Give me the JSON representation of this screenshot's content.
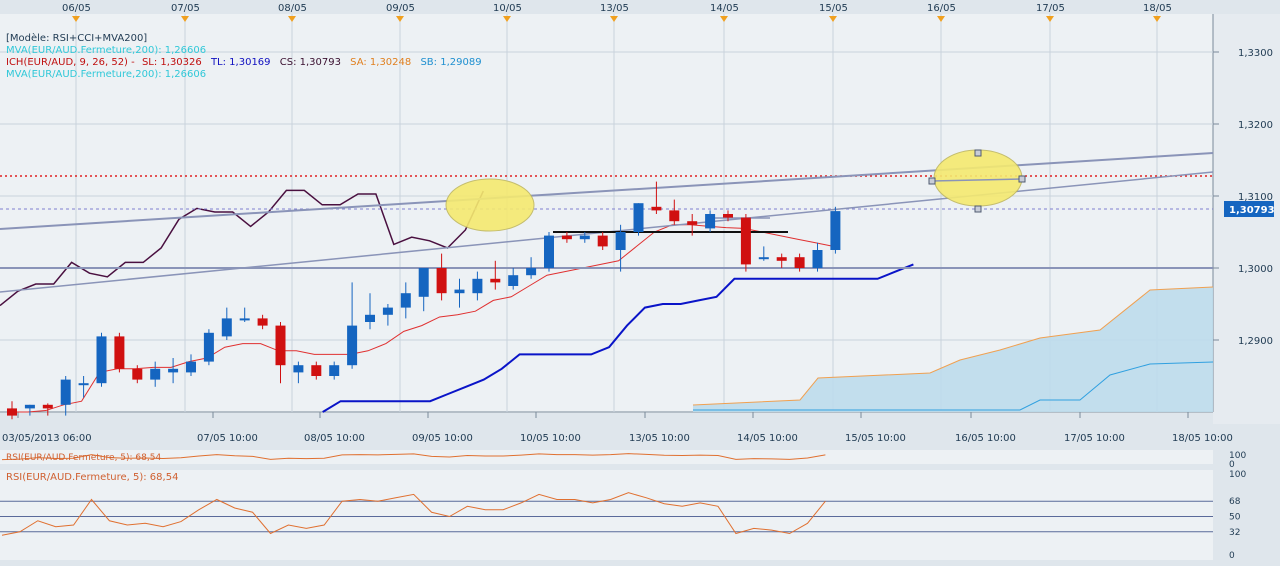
{
  "top_dates": [
    "06/05",
    "07/05",
    "08/05",
    "09/05",
    "10/05",
    "13/05",
    "14/05",
    "15/05",
    "16/05",
    "17/05",
    "18/05"
  ],
  "bottom_dates": [
    "03/05/2013 06:00",
    "07/05 10:00",
    "08/05 10:00",
    "09/05 10:00",
    "10/05 10:00",
    "13/05 10:00",
    "14/05 10:00",
    "15/05 10:00",
    "16/05 10:00",
    "17/05 10:00",
    "18/05 10:00"
  ],
  "legend": {
    "model": "[Modèle: RSI+CCI+MVA200]",
    "mva": "MVA(EUR/AUD.Fermeture,200): 1,26606",
    "ich_prefix": "ICH(EUR/AUD, 9, 26, 52) -",
    "ich_sl": "SL: 1,30326",
    "ich_tl": "TL: 1,30169",
    "ich_cs": "CS: 1,30793",
    "ich_sa": "SA: 1,30248",
    "ich_sb": "SB: 1,29089",
    "mva2": "MVA(EUR/AUD.Fermeture,200): 1,26606"
  },
  "price_axis": {
    "ticks": [
      "1,3300",
      "1,3200",
      "1,3100",
      "1,3000",
      "1,2900"
    ],
    "current": "1,30793"
  },
  "rsi_top": {
    "label": "RSI(EUR/AUD.Fermeture, 5): 68,54",
    "axis": [
      "100",
      "0"
    ]
  },
  "rsi_bottom": {
    "label": "RSI(EUR/AUD.Fermeture, 5): 68,54",
    "axis": [
      "100",
      "68",
      "50",
      "32",
      "0"
    ]
  },
  "colors": {
    "bull": "#1565c0",
    "bear": "#d01010",
    "tenkan": "#e03030",
    "kijun": "#0a14c8",
    "chikou": "#4a1040",
    "cloud_fill": "#bcdcec",
    "span_a": "#f0a050",
    "span_b": "#30a0e0",
    "trendline": "#8a94b8",
    "highlight": "#f5ea70",
    "rsi": "#e07030"
  },
  "chart_data": {
    "type": "candlestick",
    "instrument": "EUR/AUD",
    "y_ticks": [
      1.33,
      1.32,
      1.31,
      1.3,
      1.29
    ],
    "current_price": 1.30793,
    "resistance_level": 1.3013,
    "candles": [
      {
        "o": 1.2805,
        "h": 1.2815,
        "l": 1.279,
        "c": 1.2795
      },
      {
        "o": 1.2805,
        "h": 1.281,
        "l": 1.2795,
        "c": 1.281
      },
      {
        "o": 1.281,
        "h": 1.2812,
        "l": 1.2795,
        "c": 1.2805
      },
      {
        "o": 1.281,
        "h": 1.285,
        "l": 1.2795,
        "c": 1.2845
      },
      {
        "o": 1.284,
        "h": 1.285,
        "l": 1.282,
        "c": 1.284
      },
      {
        "o": 1.284,
        "h": 1.291,
        "l": 1.2835,
        "c": 1.2905
      },
      {
        "o": 1.2905,
        "h": 1.291,
        "l": 1.2855,
        "c": 1.286
      },
      {
        "o": 1.286,
        "h": 1.2865,
        "l": 1.284,
        "c": 1.2845
      },
      {
        "o": 1.2845,
        "h": 1.287,
        "l": 1.2835,
        "c": 1.286
      },
      {
        "o": 1.2855,
        "h": 1.2875,
        "l": 1.284,
        "c": 1.286
      },
      {
        "o": 1.2855,
        "h": 1.288,
        "l": 1.285,
        "c": 1.287
      },
      {
        "o": 1.287,
        "h": 1.2915,
        "l": 1.2865,
        "c": 1.291
      },
      {
        "o": 1.2905,
        "h": 1.2945,
        "l": 1.29,
        "c": 1.293
      },
      {
        "o": 1.293,
        "h": 1.2945,
        "l": 1.2925,
        "c": 1.293
      },
      {
        "o": 1.293,
        "h": 1.2935,
        "l": 1.2915,
        "c": 1.292
      },
      {
        "o": 1.292,
        "h": 1.2925,
        "l": 1.284,
        "c": 1.2865
      },
      {
        "o": 1.2855,
        "h": 1.287,
        "l": 1.284,
        "c": 1.2865
      },
      {
        "o": 1.2865,
        "h": 1.287,
        "l": 1.2845,
        "c": 1.285
      },
      {
        "o": 1.285,
        "h": 1.287,
        "l": 1.2845,
        "c": 1.2865
      },
      {
        "o": 1.2865,
        "h": 1.298,
        "l": 1.286,
        "c": 1.292
      },
      {
        "o": 1.2925,
        "h": 1.2965,
        "l": 1.2915,
        "c": 1.2935
      },
      {
        "o": 1.2935,
        "h": 1.295,
        "l": 1.292,
        "c": 1.2945
      },
      {
        "o": 1.2945,
        "h": 1.298,
        "l": 1.293,
        "c": 1.2965
      },
      {
        "o": 1.296,
        "h": 1.3,
        "l": 1.294,
        "c": 1.3
      },
      {
        "o": 1.3,
        "h": 1.302,
        "l": 1.2955,
        "c": 1.2965
      },
      {
        "o": 1.2965,
        "h": 1.2985,
        "l": 1.2945,
        "c": 1.297
      },
      {
        "o": 1.2965,
        "h": 1.2995,
        "l": 1.2955,
        "c": 1.2985
      },
      {
        "o": 1.2985,
        "h": 1.301,
        "l": 1.297,
        "c": 1.298
      },
      {
        "o": 1.2975,
        "h": 1.3,
        "l": 1.297,
        "c": 1.299
      },
      {
        "o": 1.299,
        "h": 1.3015,
        "l": 1.2985,
        "c": 1.3
      },
      {
        "o": 1.3,
        "h": 1.305,
        "l": 1.2995,
        "c": 1.3045
      },
      {
        "o": 1.3045,
        "h": 1.305,
        "l": 1.3035,
        "c": 1.304
      },
      {
        "o": 1.304,
        "h": 1.305,
        "l": 1.3035,
        "c": 1.3045
      },
      {
        "o": 1.3045,
        "h": 1.305,
        "l": 1.3025,
        "c": 1.303
      },
      {
        "o": 1.3025,
        "h": 1.306,
        "l": 1.2995,
        "c": 1.305
      },
      {
        "o": 1.305,
        "h": 1.309,
        "l": 1.3045,
        "c": 1.309
      },
      {
        "o": 1.3085,
        "h": 1.312,
        "l": 1.3075,
        "c": 1.308
      },
      {
        "o": 1.308,
        "h": 1.3095,
        "l": 1.306,
        "c": 1.3065
      },
      {
        "o": 1.3065,
        "h": 1.3075,
        "l": 1.3045,
        "c": 1.306
      },
      {
        "o": 1.3055,
        "h": 1.308,
        "l": 1.305,
        "c": 1.3075
      },
      {
        "o": 1.3075,
        "h": 1.308,
        "l": 1.3065,
        "c": 1.307
      },
      {
        "o": 1.307,
        "h": 1.3075,
        "l": 1.2995,
        "c": 1.3005
      },
      {
        "o": 1.3015,
        "h": 1.303,
        "l": 1.301,
        "c": 1.3015
      },
      {
        "o": 1.3015,
        "h": 1.302,
        "l": 1.3,
        "c": 1.301
      },
      {
        "o": 1.3015,
        "h": 1.302,
        "l": 1.2995,
        "c": 1.3
      },
      {
        "o": 1.3,
        "h": 1.3035,
        "l": 1.2995,
        "c": 1.3025
      },
      {
        "o": 1.3025,
        "h": 1.3085,
        "l": 1.302,
        "c": 1.3079
      }
    ],
    "tenkan": [
      1.28,
      1.28,
      1.2802,
      1.281,
      1.2815,
      1.2855,
      1.286,
      1.286,
      1.2862,
      1.2862,
      1.287,
      1.2875,
      1.289,
      1.2895,
      1.2895,
      1.2885,
      1.2885,
      1.288,
      1.288,
      1.288,
      1.2885,
      1.2895,
      1.2912,
      1.292,
      1.2932,
      1.2935,
      1.294,
      1.2955,
      1.296,
      1.2975,
      1.299,
      1.2995,
      1.3,
      1.3005,
      1.301,
      1.303,
      1.305,
      1.306,
      1.306,
      1.3058,
      1.3056,
      1.3055,
      1.305,
      1.3045,
      1.304,
      1.3035,
      1.303
    ],
    "kijun": [
      null,
      null,
      null,
      null,
      null,
      null,
      null,
      null,
      null,
      null,
      null,
      null,
      null,
      1.28,
      1.2815,
      1.2815,
      1.2815,
      1.2815,
      1.2815,
      1.2815,
      1.2825,
      1.2835,
      1.2845,
      1.286,
      1.288,
      1.288,
      1.288,
      1.288,
      1.288,
      1.289,
      1.292,
      1.2945,
      1.295,
      1.295,
      1.2955,
      1.296,
      1.2985,
      1.2985,
      1.2985,
      1.2985,
      1.2985,
      1.2985,
      1.2985,
      1.2985,
      1.2985,
      1.2995,
      1.3005
    ],
    "chikou": [
      1.292,
      1.294,
      1.295,
      1.295,
      1.298,
      1.2965,
      1.296,
      1.298,
      1.298,
      1.3,
      1.304,
      1.3055,
      1.305,
      1.305,
      1.303,
      1.305,
      1.308,
      1.308,
      1.306,
      1.306,
      1.3075,
      1.3075,
      1.3005,
      1.3015,
      1.301,
      1.3,
      1.3025,
      1.3079
    ],
    "rsi": [
      28,
      32,
      45,
      38,
      40,
      70,
      45,
      40,
      42,
      38,
      44,
      58,
      70,
      60,
      55,
      30,
      40,
      36,
      40,
      68,
      70,
      68,
      72,
      76,
      55,
      50,
      62,
      58,
      58,
      66,
      76,
      70,
      70,
      66,
      70,
      78,
      72,
      65,
      62,
      66,
      62,
      30,
      36,
      34,
      30,
      42,
      68
    ],
    "rsi_levels": [
      68,
      50,
      32
    ]
  }
}
